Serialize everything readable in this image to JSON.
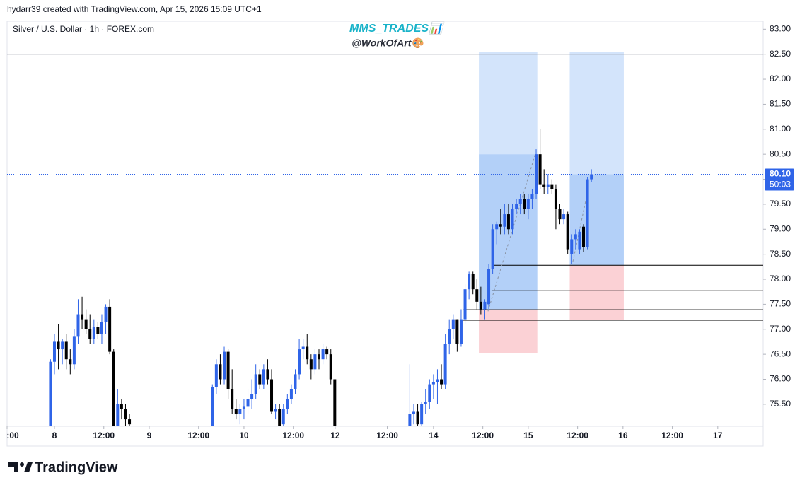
{
  "header": "hydarr39 created with TradingView.com, Apr 15, 2026 15:09 UTC+1",
  "footer": {
    "brand": "TradingView"
  },
  "chart_data": {
    "type": "candlestick",
    "title": "Silver / U.S. Dollar · 1h · FOREX.com",
    "watermark": [
      "MMS_TRADES📊",
      "@WorkOfArt🎨"
    ],
    "up_color": "#2f64e8",
    "down_color": "#000000",
    "xlim": [
      -12,
      179.5
    ],
    "ylim": [
      75.06,
      83.16
    ],
    "xticks": [
      {
        "value": -12,
        "label": ":00"
      },
      {
        "value": 0,
        "label": "8"
      },
      {
        "value": 12.5,
        "label": "12:00"
      },
      {
        "value": 24,
        "label": "9"
      },
      {
        "value": 36.5,
        "label": "12:00"
      },
      {
        "value": 48,
        "label": "10"
      },
      {
        "value": 60.5,
        "label": "12:00"
      },
      {
        "value": 71.1,
        "label": "12"
      },
      {
        "value": 84.3,
        "label": "12:00"
      },
      {
        "value": 96,
        "label": "14"
      },
      {
        "value": 108.5,
        "label": "12:00"
      },
      {
        "value": 120,
        "label": "15"
      },
      {
        "value": 132.5,
        "label": "12:00"
      },
      {
        "value": 144,
        "label": "16"
      },
      {
        "value": 156.5,
        "label": "12:00"
      },
      {
        "value": 168,
        "label": "17"
      }
    ],
    "yticks": [
      {
        "value": 75.5,
        "label": "75.50"
      },
      {
        "value": 76,
        "label": "76.00"
      },
      {
        "value": 76.5,
        "label": "76.50"
      },
      {
        "value": 77,
        "label": "77.00"
      },
      {
        "value": 77.5,
        "label": "77.50"
      },
      {
        "value": 78,
        "label": "78.00"
      },
      {
        "value": 78.5,
        "label": "78.50"
      },
      {
        "value": 79,
        "label": "79.00"
      },
      {
        "value": 79.5,
        "label": "79.50"
      },
      {
        "value": 80,
        "label": "80.00"
      },
      {
        "value": 80.5,
        "label": "80.50"
      },
      {
        "value": 81,
        "label": "81.00"
      },
      {
        "value": 81.5,
        "label": "81.50"
      },
      {
        "value": 82,
        "label": "82.00"
      },
      {
        "value": 82.5,
        "label": "82.50"
      },
      {
        "value": 83,
        "label": "83.00"
      }
    ],
    "x": [
      -1,
      0,
      1,
      2,
      3,
      4,
      5,
      6,
      7,
      8,
      9,
      10,
      11,
      12,
      13,
      14,
      15,
      16,
      17,
      18,
      19,
      40,
      41,
      42,
      43,
      44,
      45,
      46,
      47,
      48,
      49,
      50,
      51,
      52,
      53,
      54,
      55,
      56,
      57,
      58,
      59,
      60,
      61,
      62,
      63,
      64,
      65,
      66,
      67,
      68,
      69,
      70,
      71,
      90,
      91,
      92,
      93,
      94,
      95,
      96,
      97,
      98,
      99,
      100,
      101,
      102,
      103,
      104,
      105,
      106,
      107,
      108,
      109,
      110,
      111,
      112,
      113,
      114,
      115,
      116,
      117,
      118,
      119,
      120,
      121,
      122,
      123,
      124,
      125,
      126,
      127,
      128,
      129,
      130,
      131,
      132,
      133,
      134,
      135,
      136
    ],
    "open": [
      75.0,
      76.35,
      76.75,
      76.6,
      76.75,
      76.4,
      76.3,
      76.85,
      77.3,
      77.2,
      77.0,
      76.8,
      77.05,
      76.9,
      77.15,
      77.45,
      76.55,
      75.05,
      75.5,
      75.4,
      75.2,
      75.0,
      75.85,
      76.3,
      76.0,
      76.55,
      75.8,
      75.4,
      75.3,
      75.4,
      75.45,
      75.6,
      75.7,
      76.1,
      75.9,
      76.2,
      76.0,
      75.35,
      75.4,
      75.1,
      75.4,
      75.6,
      75.8,
      76.1,
      76.6,
      76.65,
      76.4,
      76.2,
      76.5,
      76.4,
      76.6,
      76.5,
      76.0,
      75.0,
      75.3,
      75.35,
      75.1,
      75.5,
      75.55,
      75.9,
      75.95,
      76.0,
      75.9,
      76.7,
      77.0,
      77.2,
      76.7,
      77.2,
      77.8,
      78.1,
      77.8,
      77.55,
      77.4,
      77.5,
      78.2,
      79.0,
      79.1,
      79.05,
      79.3,
      79.0,
      79.4,
      79.5,
      79.6,
      79.4,
      79.6,
      79.7,
      80.5,
      79.9,
      79.85,
      79.9,
      79.8,
      79.4,
      79.2,
      79.3,
      78.5,
      78.8,
      78.6,
      79.05,
      78.65,
      80.0
    ],
    "high": [
      76.4,
      76.9,
      77.1,
      76.8,
      76.9,
      76.6,
      77.0,
      77.6,
      77.65,
      77.4,
      77.3,
      77.2,
      77.15,
      77.3,
      77.5,
      77.6,
      76.6,
      75.8,
      75.6,
      75.5,
      75.3,
      75.9,
      76.4,
      76.5,
      76.65,
      76.6,
      76.2,
      75.6,
      75.5,
      75.6,
      75.8,
      76.0,
      76.3,
      76.2,
      76.3,
      76.4,
      76.2,
      75.5,
      75.5,
      75.5,
      75.7,
      75.9,
      76.2,
      76.8,
      76.8,
      76.9,
      76.5,
      76.6,
      76.6,
      76.7,
      76.65,
      76.6,
      76.0,
      76.3,
      75.5,
      75.5,
      75.55,
      75.8,
      76.0,
      76.1,
      76.2,
      76.3,
      76.9,
      77.2,
      77.3,
      77.2,
      77.4,
      77.9,
      78.15,
      78.15,
      78.0,
      77.85,
      77.6,
      78.3,
      79.1,
      79.15,
      79.4,
      79.5,
      79.5,
      79.5,
      79.6,
      79.7,
      79.7,
      79.7,
      79.8,
      80.6,
      81.0,
      80.2,
      80.1,
      80.0,
      79.9,
      79.5,
      79.4,
      79.35,
      78.9,
      79.0,
      79.0,
      79.1,
      80.05,
      80.2
    ],
    "low": [
      74.9,
      76.1,
      76.2,
      76.3,
      76.2,
      76.1,
      76.2,
      76.7,
      77.0,
      76.9,
      76.7,
      76.7,
      76.8,
      76.7,
      76.9,
      76.5,
      74.9,
      74.9,
      75.2,
      75.0,
      74.9,
      74.9,
      75.7,
      75.9,
      75.9,
      75.6,
      75.3,
      75.2,
      75.1,
      75.2,
      75.3,
      75.4,
      75.6,
      75.8,
      75.8,
      75.9,
      75.3,
      75.2,
      75.0,
      75.0,
      75.3,
      75.5,
      75.7,
      76.0,
      76.4,
      76.3,
      76.0,
      76.1,
      76.2,
      76.3,
      76.4,
      75.9,
      74.9,
      74.9,
      75.1,
      75.0,
      75.05,
      75.3,
      75.4,
      75.6,
      75.5,
      75.8,
      75.8,
      76.5,
      76.8,
      76.55,
      76.65,
      77.1,
      77.6,
      77.7,
      77.4,
      77.3,
      77.2,
      77.4,
      78.1,
      78.7,
      78.9,
      78.9,
      78.9,
      78.9,
      79.3,
      79.3,
      79.3,
      79.2,
      79.4,
      79.6,
      79.8,
      79.7,
      79.7,
      79.7,
      79.0,
      79.1,
      79.1,
      78.5,
      78.3,
      78.6,
      78.5,
      78.55,
      78.6,
      79.95
    ],
    "close": [
      76.35,
      76.75,
      76.6,
      76.75,
      76.4,
      76.3,
      76.85,
      77.3,
      77.2,
      77.0,
      76.8,
      77.05,
      76.9,
      77.15,
      77.45,
      76.55,
      75.05,
      75.5,
      75.4,
      75.2,
      75.1,
      75.85,
      76.3,
      76.0,
      76.55,
      75.8,
      75.4,
      75.3,
      75.4,
      75.45,
      75.6,
      75.7,
      76.1,
      75.9,
      76.2,
      76.0,
      75.35,
      75.4,
      75.05,
      75.4,
      75.6,
      75.8,
      76.1,
      76.6,
      76.65,
      76.4,
      76.2,
      76.5,
      76.4,
      76.6,
      76.5,
      76.0,
      75.0,
      75.3,
      75.35,
      75.1,
      75.5,
      75.55,
      75.9,
      75.95,
      76.0,
      75.9,
      76.7,
      77.0,
      77.2,
      76.7,
      77.2,
      77.8,
      78.1,
      77.8,
      77.55,
      77.4,
      77.55,
      78.2,
      79.0,
      79.1,
      79.05,
      79.3,
      79.0,
      79.4,
      79.5,
      79.6,
      79.4,
      79.6,
      79.7,
      80.5,
      79.9,
      79.85,
      79.9,
      79.8,
      79.4,
      79.2,
      79.3,
      78.6,
      78.8,
      78.9,
      78.95,
      78.65,
      80.0,
      80.1
    ],
    "zones": [
      {
        "x": [
          107.5,
          122.3
        ],
        "y": [
          80.5,
          82.55
        ],
        "color": "#d3e4fb"
      },
      {
        "x": [
          107.5,
          122.3
        ],
        "y": [
          77.4,
          80.5
        ],
        "color": "#b3d0f8"
      },
      {
        "x": [
          107.5,
          122.3
        ],
        "y": [
          76.52,
          77.4
        ],
        "color": "#fbd1d5"
      },
      {
        "x": [
          130.5,
          144.2
        ],
        "y": [
          80.1,
          82.55
        ],
        "color": "#d3e4fb"
      },
      {
        "x": [
          130.5,
          144.2
        ],
        "y": [
          78.28,
          80.1
        ],
        "color": "#b3d0f8"
      },
      {
        "x": [
          130.5,
          144.2
        ],
        "y": [
          77.18,
          78.28
        ],
        "color": "#fbd1d5"
      }
    ],
    "levels": [
      {
        "x0": -12,
        "y": 82.5,
        "color": "#9598a1"
      },
      {
        "x0": 111.1,
        "y": 78.28,
        "color": "#000000"
      },
      {
        "x0": 110.7,
        "y": 77.77,
        "color": "#000000"
      },
      {
        "x0": 103.6,
        "y": 77.39,
        "color": "#000000"
      },
      {
        "x0": 103.3,
        "y": 77.18,
        "color": "#000000"
      }
    ],
    "trendlines": [
      {
        "x": [
          109.8,
          121.8
        ],
        "y": [
          77.36,
          80.51
        ]
      },
      {
        "x": [
          131.3,
          134.9
        ],
        "y": [
          78.35,
          79.7
        ]
      }
    ],
    "last_price": {
      "value": 80.1,
      "label": "80.10"
    },
    "countdown": "50:03"
  }
}
